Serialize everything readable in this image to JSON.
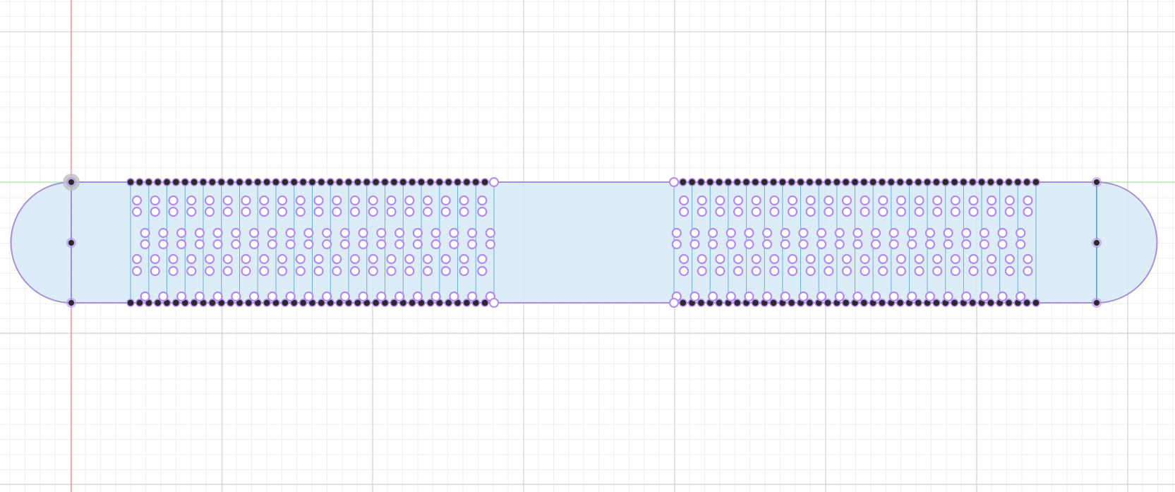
{
  "app": {
    "view": "sketch-canvas"
  },
  "colors": {
    "background": "#ffffff",
    "grid_minor": "#eeeeee",
    "grid_major": "#cfcfcf",
    "axis_vertical": "#f08080",
    "axis_horizontal": "#a8f0a8",
    "profile_fill": "#d6eaf6",
    "profile_stroke": "#a690dc",
    "construction_line": "#6aaede",
    "constraint_point": "#b48af0",
    "fixed_point": "#2a2a2a"
  },
  "sketch": {
    "profile": "slot-with-pattern-arrays",
    "left_pattern": {
      "type": "rectangular-pattern",
      "columns": 20,
      "rows_of_holes": 4
    },
    "right_pattern": {
      "type": "rectangular-pattern",
      "columns": 20,
      "rows_of_holes": 4
    },
    "icons": {
      "origin": "origin-point-icon",
      "constraint": "coincident-constraint-icon"
    }
  }
}
